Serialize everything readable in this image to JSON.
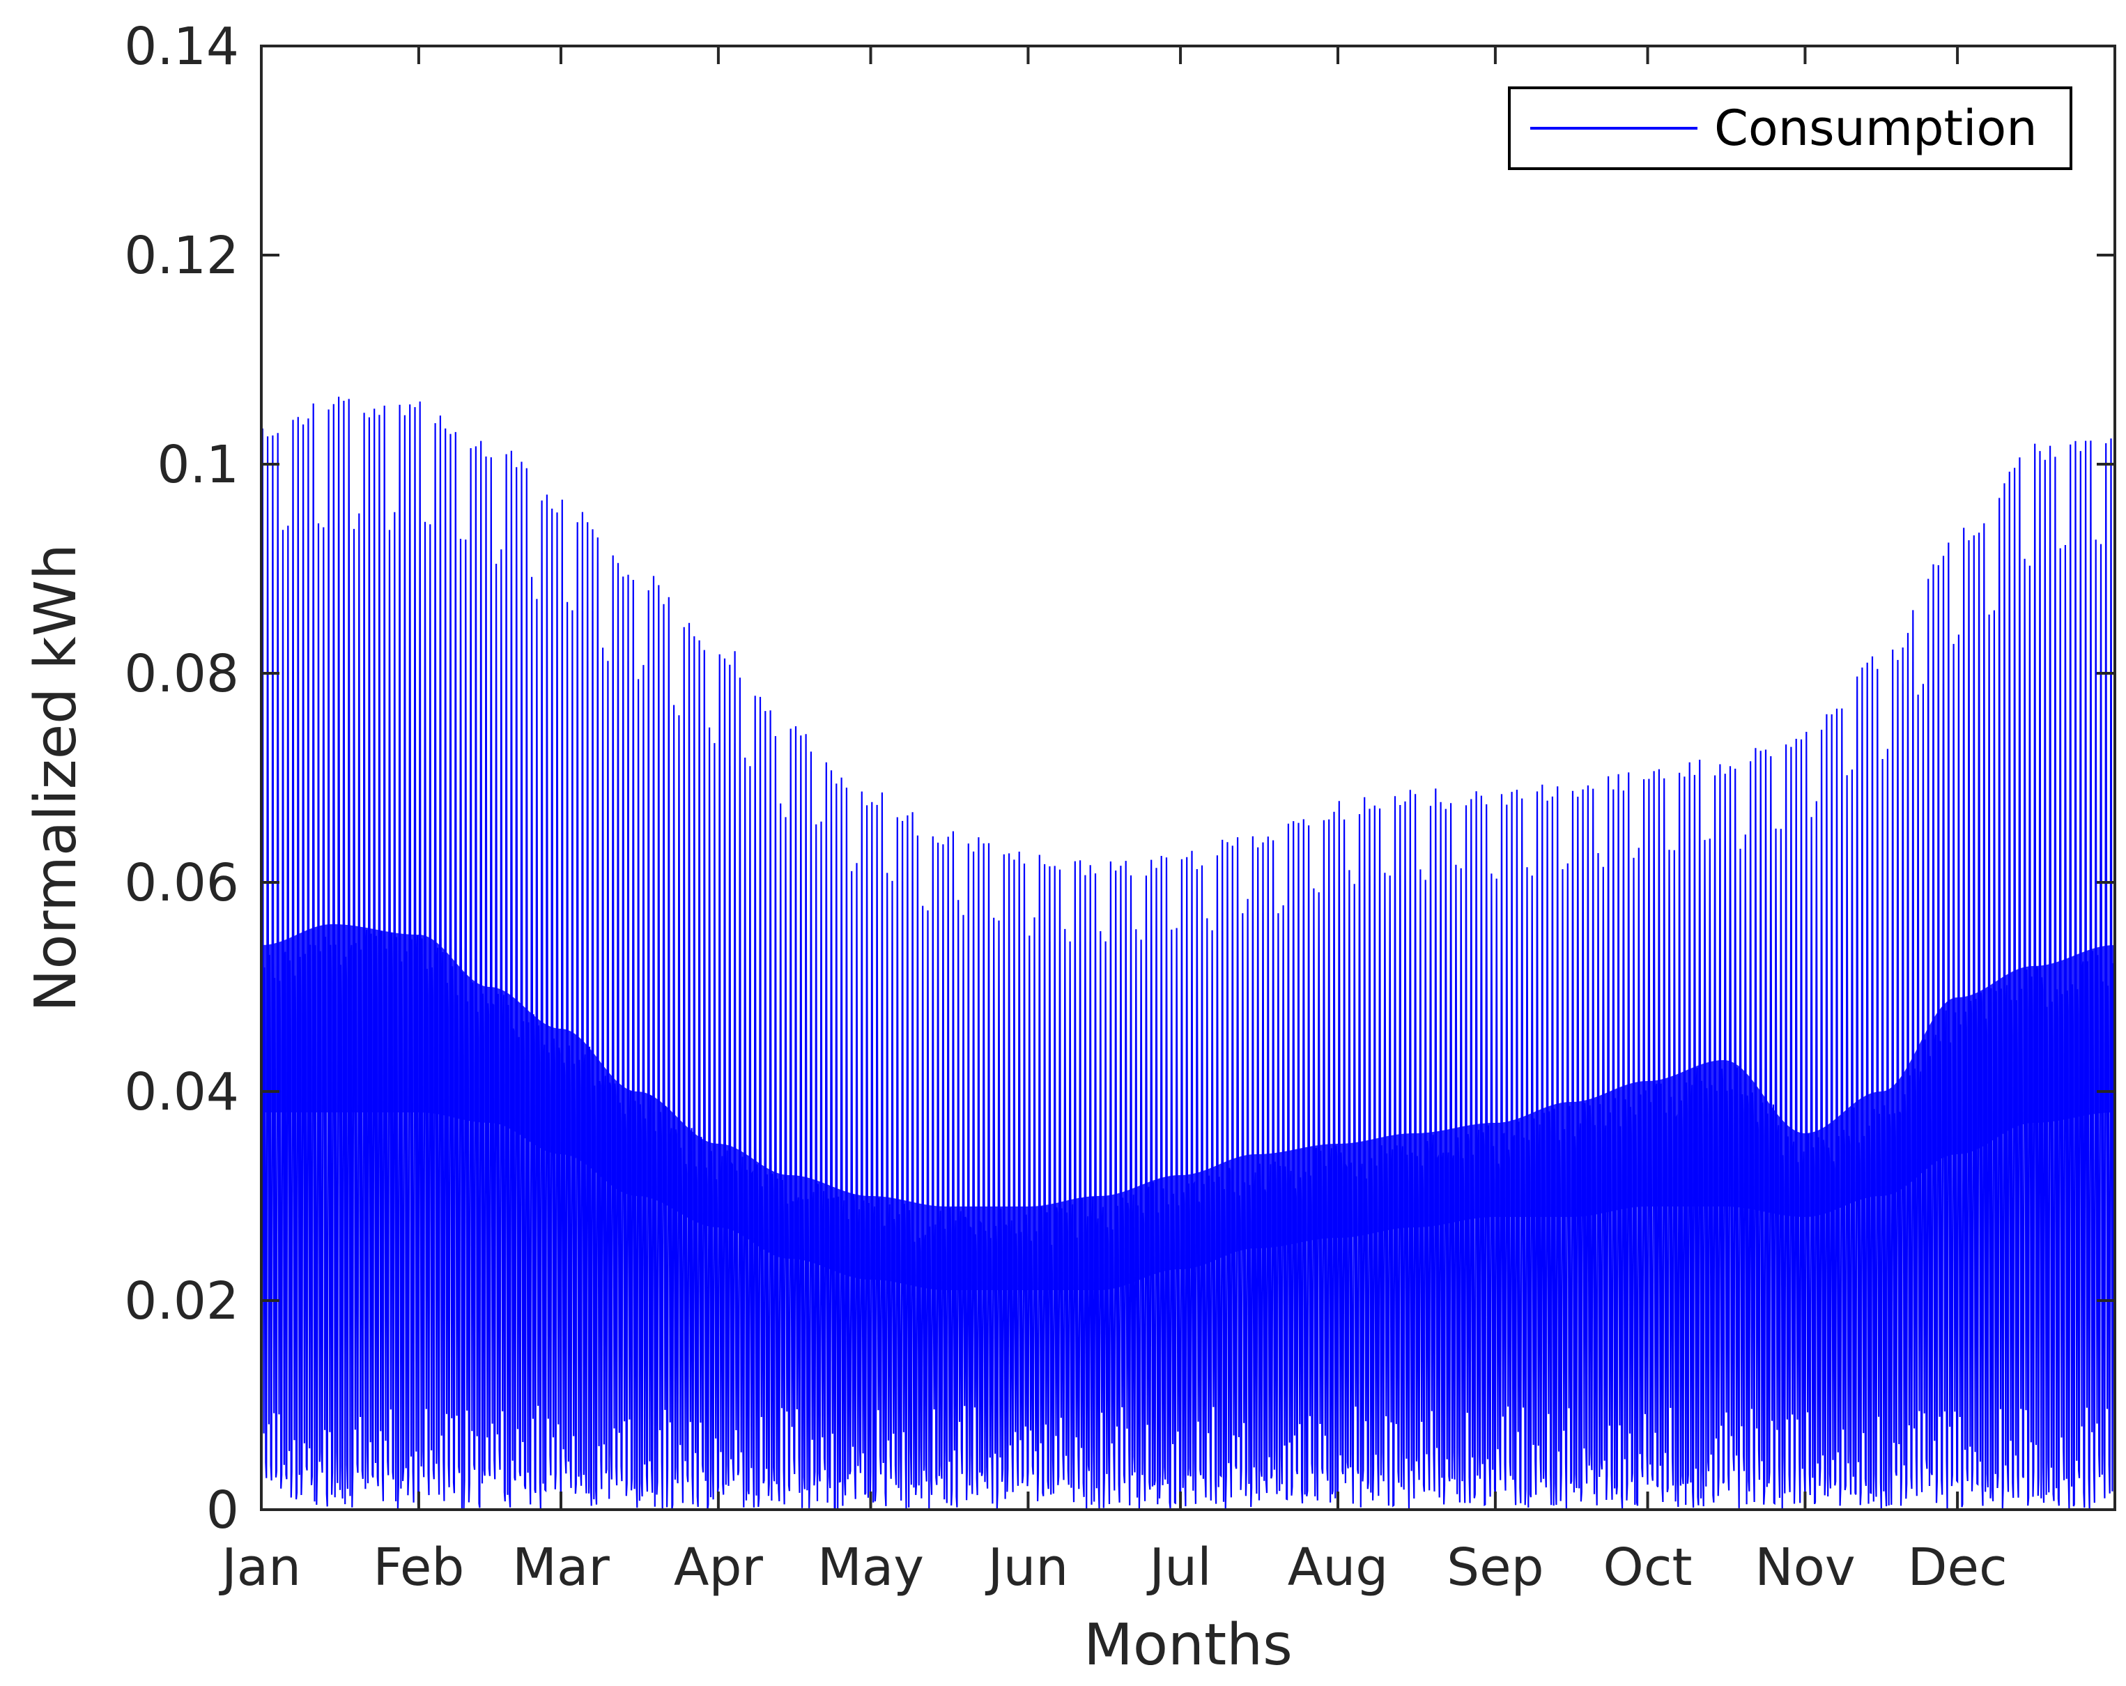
{
  "chart_data": {
    "type": "line",
    "title": "",
    "xlabel": "Months",
    "ylabel": "Normalized kWh",
    "ylim": [
      0,
      0.14
    ],
    "y_ticks": [
      "0",
      "0.02",
      "0.04",
      "0.06",
      "0.08",
      "0.1",
      "0.12",
      "0.14"
    ],
    "y_tick_values": [
      0,
      0.02,
      0.04,
      0.06,
      0.08,
      0.1,
      0.12,
      0.14
    ],
    "categories": [
      "Jan",
      "Feb",
      "Mar",
      "Apr",
      "May",
      "Jun",
      "Jul",
      "Aug",
      "Sep",
      "Oct",
      "Nov",
      "Dec"
    ],
    "x_domain_days": [
      1,
      366
    ],
    "month_start_day": [
      1,
      32,
      60,
      91,
      121,
      152,
      182,
      213,
      244,
      274,
      305,
      335
    ],
    "legend": {
      "location": "top-right",
      "entries": [
        "Consumption"
      ]
    },
    "series": [
      {
        "name": "Consumption",
        "color": "#0000ff",
        "description_values": "Daily profile envelope sampled at month starts",
        "x_days": [
          1,
          15,
          32,
          46,
          60,
          75,
          91,
          105,
          121,
          136,
          152,
          166,
          182,
          197,
          213,
          228,
          244,
          259,
          274,
          289,
          305,
          320,
          335,
          350,
          366
        ],
        "daily_peak": [
          0.104,
          0.1065,
          0.106,
          0.1025,
          0.097,
          0.09,
          0.083,
          0.075,
          0.069,
          0.065,
          0.063,
          0.062,
          0.063,
          0.065,
          0.068,
          0.069,
          0.069,
          0.07,
          0.071,
          0.072,
          0.075,
          0.082,
          0.094,
          0.102,
          0.104
        ],
        "upper_band": [
          0.054,
          0.056,
          0.055,
          0.05,
          0.046,
          0.04,
          0.035,
          0.032,
          0.03,
          0.029,
          0.029,
          0.03,
          0.032,
          0.034,
          0.035,
          0.036,
          0.037,
          0.039,
          0.041,
          0.043,
          0.036,
          0.04,
          0.049,
          0.052,
          0.054
        ],
        "lower_band": [
          0.038,
          0.038,
          0.038,
          0.037,
          0.034,
          0.03,
          0.027,
          0.024,
          0.022,
          0.021,
          0.021,
          0.021,
          0.023,
          0.025,
          0.026,
          0.027,
          0.028,
          0.028,
          0.029,
          0.029,
          0.028,
          0.03,
          0.034,
          0.037,
          0.038
        ],
        "daily_min": [
          0.0,
          0.0,
          0.0,
          0.0,
          0.0,
          0.0,
          0.0,
          0.0,
          0.0,
          0.0,
          0.0,
          0.0,
          0.0,
          0.0,
          0.0,
          0.0,
          0.0,
          0.0,
          0.0,
          0.0,
          0.0,
          0.0,
          0.0,
          0.0,
          0.0
        ]
      }
    ]
  },
  "colors": {
    "series": "#0000ff",
    "axis": "#262626",
    "background": "#ffffff"
  }
}
